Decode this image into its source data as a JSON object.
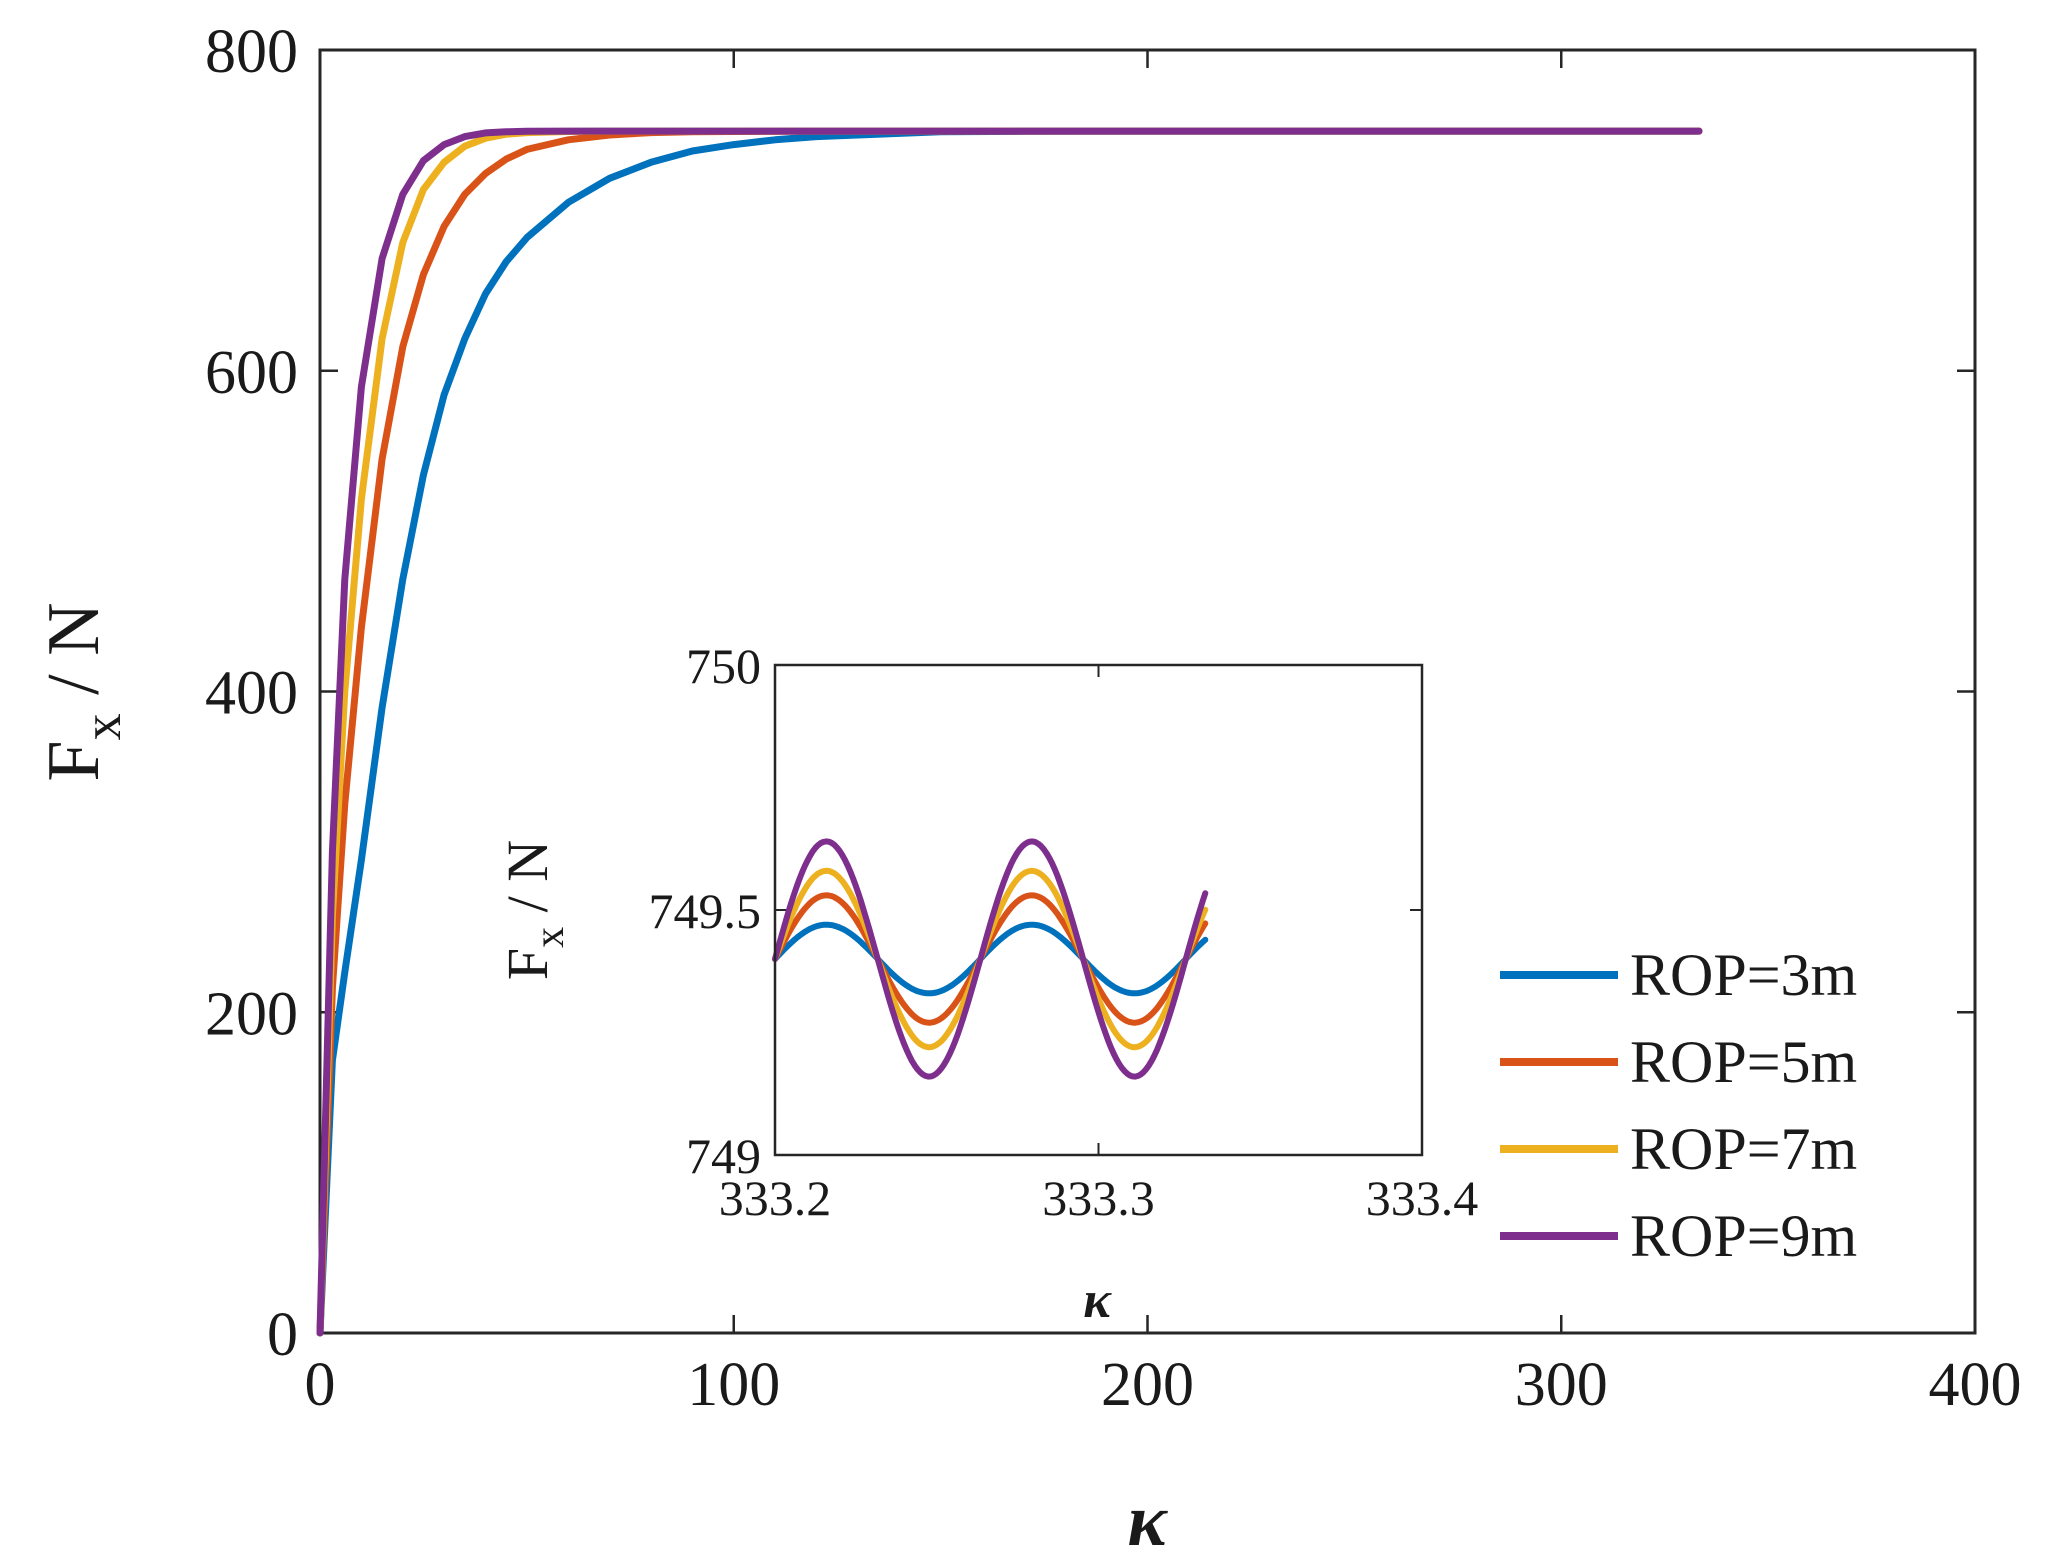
{
  "chart_data": [
    {
      "id": "main",
      "type": "line",
      "xlabel": "κ",
      "ylabel": {
        "base": "F",
        "subscript": "x",
        "unit": " / N"
      },
      "xlim": [
        0,
        400
      ],
      "ylim": [
        0,
        800
      ],
      "xticks": [
        0,
        100,
        200,
        300,
        400
      ],
      "yticks": [
        0,
        200,
        400,
        600,
        800
      ],
      "legend_position": "bottom-right",
      "series": [
        {
          "name": "ROP=3m",
          "color": "#0072BD",
          "x": [
            0,
            3,
            6,
            10,
            15,
            20,
            25,
            30,
            35,
            40,
            45,
            50,
            60,
            70,
            80,
            90,
            100,
            110,
            120,
            130,
            140,
            150,
            170,
            200,
            250,
            300,
            333.3
          ],
          "y": [
            0,
            170,
            225,
            295,
            390,
            470,
            535,
            585,
            620,
            648,
            668,
            683,
            705,
            720,
            730,
            737,
            741,
            744,
            746,
            747,
            748,
            749,
            749.3,
            749.4,
            749.4,
            749.4,
            749.4
          ]
        },
        {
          "name": "ROP=5m",
          "color": "#D95319",
          "x": [
            0,
            3,
            6,
            10,
            15,
            20,
            25,
            30,
            35,
            40,
            45,
            50,
            60,
            70,
            80,
            90,
            100,
            120,
            150,
            200,
            250,
            300,
            333.3
          ],
          "y": [
            0,
            215,
            330,
            440,
            545,
            615,
            660,
            690,
            710,
            723,
            732,
            738,
            744,
            747,
            748.5,
            749,
            749.2,
            749.4,
            749.4,
            749.4,
            749.4,
            749.4,
            749.4
          ]
        },
        {
          "name": "ROP=7m",
          "color": "#EDB120",
          "x": [
            0,
            3,
            6,
            10,
            15,
            20,
            25,
            30,
            35,
            40,
            45,
            50,
            60,
            70,
            80,
            100,
            150,
            200,
            250,
            300,
            333.3
          ],
          "y": [
            0,
            260,
            400,
            520,
            620,
            680,
            713,
            730,
            740,
            745,
            747.5,
            748.5,
            749.2,
            749.4,
            749.4,
            749.4,
            749.4,
            749.4,
            749.4,
            749.4,
            749.4
          ]
        },
        {
          "name": "ROP=9m",
          "color": "#7E2F8E",
          "x": [
            0,
            3,
            6,
            10,
            15,
            20,
            25,
            30,
            35,
            40,
            45,
            50,
            60,
            70,
            100,
            150,
            200,
            250,
            300,
            333.3
          ],
          "y": [
            0,
            300,
            470,
            590,
            670,
            710,
            731,
            741,
            746,
            748.3,
            749,
            749.3,
            749.4,
            749.4,
            749.4,
            749.4,
            749.4,
            749.4,
            749.4,
            749.4
          ]
        }
      ]
    },
    {
      "id": "inset",
      "type": "line",
      "xlabel": "κ",
      "ylabel": {
        "base": "F",
        "subscript": "x",
        "unit": " / N"
      },
      "xlim": [
        333.2,
        333.4
      ],
      "ylim": [
        749,
        750
      ],
      "xticks": [
        333.2,
        333.3,
        333.4
      ],
      "yticks": [
        749,
        749.5,
        750
      ],
      "xtick_labels": [
        "333.2",
        "333.3",
        "333.4"
      ],
      "ytick_labels": [
        "749",
        "749.5",
        "750"
      ],
      "oscillation": {
        "x_start": 333.2,
        "x_end": 333.333,
        "period": 0.0635,
        "center": 749.4
      },
      "series": [
        {
          "name": "ROP=3m",
          "color": "#0072BD",
          "amplitude": 0.07
        },
        {
          "name": "ROP=5m",
          "color": "#D95319",
          "amplitude": 0.13
        },
        {
          "name": "ROP=7m",
          "color": "#EDB120",
          "amplitude": 0.18
        },
        {
          "name": "ROP=9m",
          "color": "#7E2F8E",
          "amplitude": 0.24
        }
      ]
    }
  ]
}
